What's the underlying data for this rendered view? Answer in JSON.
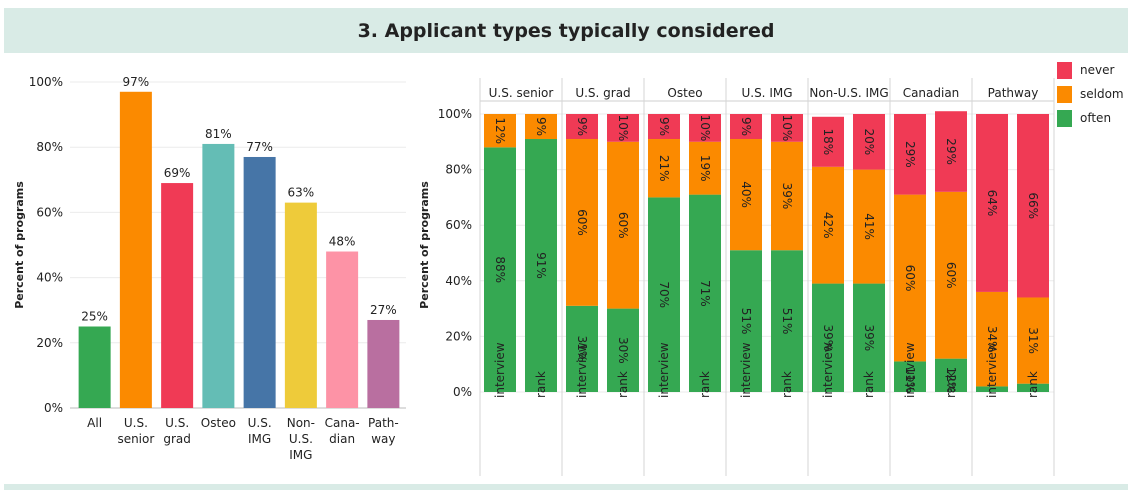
{
  "title": "3. Applicant types typically considered",
  "chart_data": [
    {
      "type": "bar",
      "ylabel": "Percent of programs",
      "ylim": [
        0,
        100
      ],
      "y_ticks": [
        "0%",
        "20%",
        "40%",
        "60%",
        "80%",
        "100%"
      ],
      "categories": [
        {
          "lines": [
            "All"
          ],
          "value": 25,
          "label": "25%",
          "color": "#35a852"
        },
        {
          "lines": [
            "U.S.",
            "senior"
          ],
          "value": 97,
          "label": "97%",
          "color": "#fb8a00"
        },
        {
          "lines": [
            "U.S.",
            "grad"
          ],
          "value": 69,
          "label": "69%",
          "color": "#f03a55"
        },
        {
          "lines": [
            "Osteo"
          ],
          "value": 81,
          "label": "81%",
          "color": "#64bdb5"
        },
        {
          "lines": [
            "U.S.",
            "IMG"
          ],
          "value": 77,
          "label": "77%",
          "color": "#4675a7"
        },
        {
          "lines": [
            "Non-",
            "U.S.",
            "IMG"
          ],
          "value": 63,
          "label": "63%",
          "color": "#eecb3a"
        },
        {
          "lines": [
            "Cana-",
            "dian"
          ],
          "value": 48,
          "label": "48%",
          "color": "#fd93a6"
        },
        {
          "lines": [
            "Path-",
            "way"
          ],
          "value": 27,
          "label": "27%",
          "color": "#b96fa0"
        }
      ]
    },
    {
      "type": "bar",
      "stacked": true,
      "ylabel": "Percent of programs",
      "ylim": [
        0,
        100
      ],
      "y_ticks": [
        "0%",
        "20%",
        "40%",
        "60%",
        "80%",
        "100%"
      ],
      "legend_position": "top-right",
      "series": [
        {
          "name": "never",
          "color": "#f03a55"
        },
        {
          "name": "seldom",
          "color": "#fb8a00"
        },
        {
          "name": "often",
          "color": "#35a852"
        }
      ],
      "groups": [
        {
          "name": "U.S. senior",
          "bars": [
            {
              "x": "interview",
              "often": 88,
              "seldom": 12,
              "never": 0,
              "labels": {
                "often": "88%",
                "seldom": "12%"
              }
            },
            {
              "x": "rank",
              "often": 91,
              "seldom": 9,
              "never": 0,
              "labels": {
                "often": "91%",
                "seldom": "9%"
              }
            }
          ]
        },
        {
          "name": "U.S. grad",
          "bars": [
            {
              "x": "interview",
              "often": 31,
              "seldom": 60,
              "never": 9,
              "labels": {
                "often": "31%",
                "seldom": "60%",
                "never": "9%"
              }
            },
            {
              "x": "rank",
              "often": 30,
              "seldom": 60,
              "never": 10,
              "labels": {
                "often": "30%",
                "seldom": "60%",
                "never": "10%"
              }
            }
          ]
        },
        {
          "name": "Osteo",
          "bars": [
            {
              "x": "interview",
              "often": 70,
              "seldom": 21,
              "never": 9,
              "labels": {
                "often": "70%",
                "seldom": "21%",
                "never": "9%"
              }
            },
            {
              "x": "rank",
              "often": 71,
              "seldom": 19,
              "never": 10,
              "labels": {
                "often": "71%",
                "seldom": "19%",
                "never": "10%"
              }
            }
          ]
        },
        {
          "name": "U.S. IMG",
          "bars": [
            {
              "x": "interview",
              "often": 51,
              "seldom": 40,
              "never": 9,
              "labels": {
                "often": "51%",
                "seldom": "40%",
                "never": "9%"
              }
            },
            {
              "x": "rank",
              "often": 51,
              "seldom": 39,
              "never": 10,
              "labels": {
                "often": "51%",
                "seldom": "39%",
                "never": "10%"
              }
            }
          ]
        },
        {
          "name": "Non-U.S. IMG",
          "bars": [
            {
              "x": "interview",
              "often": 39,
              "seldom": 42,
              "never": 18,
              "labels": {
                "often": "39%",
                "seldom": "42%",
                "never": "18%"
              }
            },
            {
              "x": "rank",
              "often": 39,
              "seldom": 41,
              "never": 20,
              "labels": {
                "often": "39%",
                "seldom": "41%",
                "never": "20%"
              }
            }
          ]
        },
        {
          "name": "Canadian",
          "bars": [
            {
              "x": "interview",
              "often": 11,
              "seldom": 60,
              "never": 29,
              "labels": {
                "often": "11%",
                "seldom": "60%",
                "never": "29%"
              }
            },
            {
              "x": "rank",
              "often": 12,
              "seldom": 60,
              "never": 29,
              "labels": {
                "often": "12%",
                "seldom": "60%",
                "never": "29%"
              }
            }
          ]
        },
        {
          "name": "Pathway",
          "bars": [
            {
              "x": "interview",
              "often": 2,
              "seldom": 34,
              "never": 64,
              "labels": {
                "seldom": "34%",
                "never": "64%"
              }
            },
            {
              "x": "rank",
              "often": 3,
              "seldom": 31,
              "never": 66,
              "labels": {
                "seldom": "31%",
                "never": "66%"
              }
            }
          ]
        }
      ]
    }
  ]
}
